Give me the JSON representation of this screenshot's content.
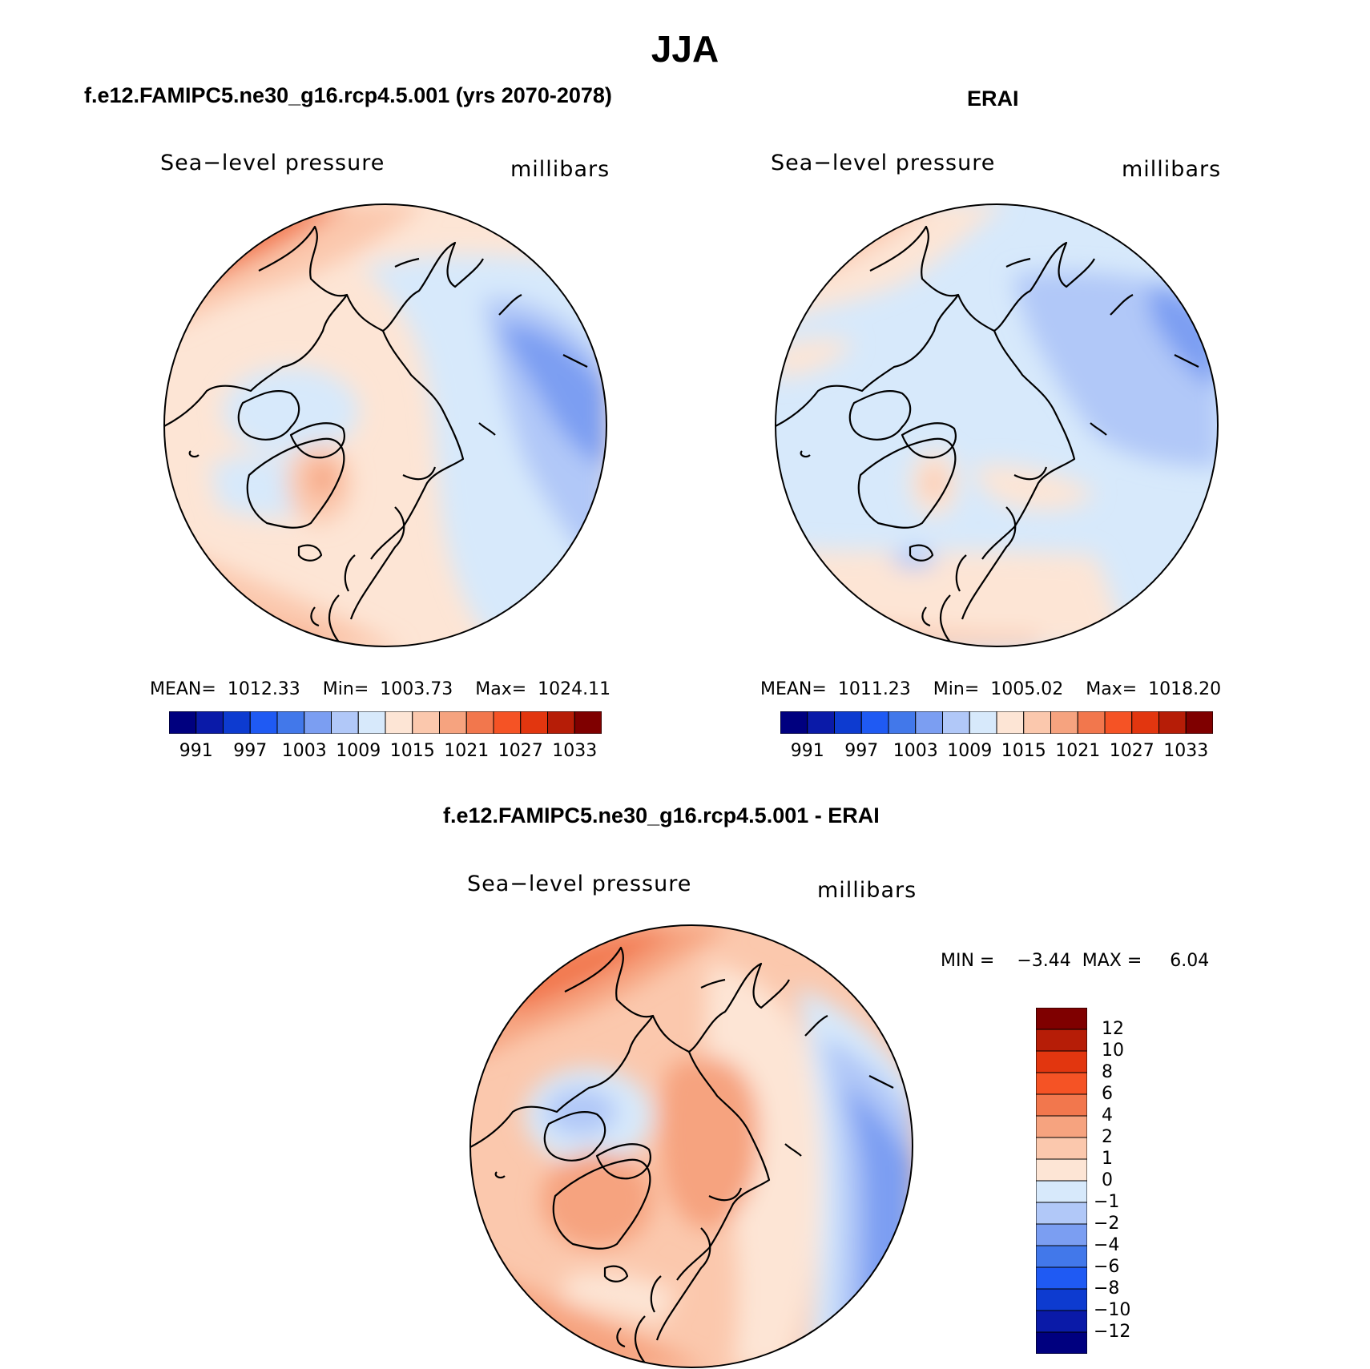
{
  "figure": {
    "title": "JJA"
  },
  "panels": [
    {
      "id": "model",
      "header": "f.e12.FAMIPC5.ne30_g16.rcp4.5.001 (yrs 2070-2078)",
      "left_label": "Sea−level pressure",
      "right_label": "millibars",
      "stats": {
        "mean_label": "MEAN=",
        "mean": "1012.33",
        "min_label": "Min=",
        "min": "1003.73",
        "max_label": "Max=",
        "max": "1024.11"
      }
    },
    {
      "id": "erai",
      "header": "ERAI",
      "left_label": "Sea−level pressure",
      "right_label": "millibars",
      "stats": {
        "mean_label": "MEAN=",
        "mean": "1011.23",
        "min_label": "Min=",
        "min": "1005.02",
        "max_label": "Max=",
        "max": "1018.20"
      }
    },
    {
      "id": "difference",
      "header": "f.e12.FAMIPC5.ne30_g16.rcp4.5.001 - ERAI",
      "left_label": "Sea−level pressure",
      "right_label": "millibars",
      "stats": {
        "min_label": "MIN =",
        "min": "−3.44",
        "max_label": "MAX =",
        "max": "6.04"
      }
    }
  ],
  "colorbars": {
    "absolute": {
      "colors": [
        "#00007f",
        "#0a1aa8",
        "#0d3bd0",
        "#1f5af3",
        "#4278ea",
        "#7b9ef2",
        "#b1c8f8",
        "#d7e9fb",
        "#fde5d5",
        "#fbc8ad",
        "#f6a37f",
        "#f2774d",
        "#f55325",
        "#e2360f",
        "#b61d07",
        "#7f0000"
      ],
      "tick_labels": [
        "991",
        "997",
        "1003",
        "1009",
        "1015",
        "1021",
        "1027",
        "1033"
      ]
    },
    "difference": {
      "colors": [
        "#7f0000",
        "#b61d07",
        "#e2360f",
        "#f55325",
        "#f2774d",
        "#f6a37f",
        "#fbc8ad",
        "#fde5d5",
        "#d7e9fb",
        "#b1c8f8",
        "#7b9ef2",
        "#4278ea",
        "#1f5af3",
        "#0d3bd0",
        "#0a1aa8",
        "#00007f"
      ],
      "tick_labels": [
        "12",
        "10",
        "8",
        "6",
        "4",
        "2",
        "1",
        "0",
        "−1",
        "−2",
        "−4",
        "−6",
        "−8",
        "−10",
        "−12"
      ]
    }
  }
}
